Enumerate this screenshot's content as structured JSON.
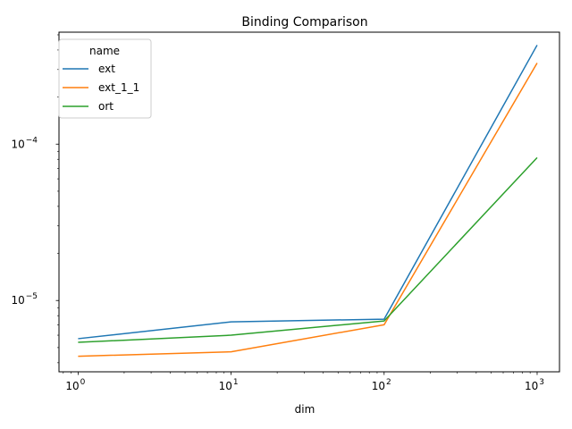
{
  "chart_data": {
    "type": "line",
    "title": "Binding Comparison",
    "xlabel": "dim",
    "ylabel": "",
    "xscale": "log",
    "yscale": "log",
    "x": [
      1,
      10,
      100,
      1000
    ],
    "xlim": [
      0.75,
      1400
    ],
    "ylim": [
      3.5e-06,
      0.00052
    ],
    "x_ticks": [
      {
        "value": 1,
        "base": "10",
        "exp": "0"
      },
      {
        "value": 10,
        "base": "10",
        "exp": "1"
      },
      {
        "value": 100,
        "base": "10",
        "exp": "2"
      },
      {
        "value": 1000,
        "base": "10",
        "exp": "3"
      }
    ],
    "y_ticks": [
      {
        "value": 1e-05,
        "base": "10",
        "exp": "−5"
      },
      {
        "value": 0.0001,
        "base": "10",
        "exp": "−4"
      }
    ],
    "legend": {
      "title": "name",
      "position": "top-left"
    },
    "grid": false,
    "series": [
      {
        "name": "ext",
        "color": "#1f77b4",
        "values": [
          5.7e-06,
          7.3e-06,
          7.6e-06,
          0.00043
        ]
      },
      {
        "name": "ext_1_1",
        "color": "#ff7f0e",
        "values": [
          4.4e-06,
          4.7e-06,
          7e-06,
          0.00033
        ]
      },
      {
        "name": "ort",
        "color": "#2ca02c",
        "values": [
          5.4e-06,
          6e-06,
          7.4e-06,
          8.2e-05
        ]
      }
    ]
  }
}
